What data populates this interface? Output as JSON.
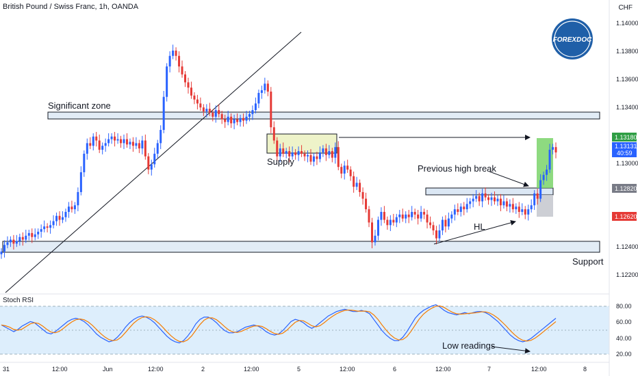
{
  "header": {
    "symbol_title": "British Pound / Swiss Franc, 1h, OANDA",
    "currency": "CHF",
    "logo_text": "FOREXDOC"
  },
  "chart_data": {
    "type": "candlestick",
    "title": "British Pound / Swiss Franc, 1h, OANDA",
    "y_axis": {
      "unit": "CHF",
      "range": [
        1.1208,
        1.142
      ],
      "ticks": [
        "1.14000",
        "1.13800",
        "1.13600",
        "1.13400",
        "1.13000",
        "1.12400",
        "1.12200"
      ]
    },
    "x_axis": {
      "ticks": [
        "31",
        "12:00",
        "Jun",
        "12:00",
        "2",
        "12:00",
        "5",
        "12:00",
        "6",
        "12:00",
        "7",
        "12:00",
        "8"
      ]
    },
    "price_labels": [
      {
        "text": "1.13180",
        "value": 1.1318,
        "color": "#2f9e44"
      },
      {
        "text": "1.13131",
        "value": 1.13131,
        "color": "#2962ff"
      },
      {
        "text": "40:59",
        "value": 1.13095,
        "color": "#2962ff"
      },
      {
        "text": "1.12820",
        "value": 1.1282,
        "color": "#787b86"
      },
      {
        "text": "1.12620",
        "value": 1.1262,
        "color": "#e53935"
      }
    ],
    "series_close": [
      1.1238,
      1.1243,
      1.1245,
      1.1247,
      1.1244,
      1.1246,
      1.1249,
      1.1247,
      1.125,
      1.1252,
      1.1249,
      1.1251,
      1.1253,
      1.1255,
      1.1257,
      1.1256,
      1.1258,
      1.1261,
      1.1265,
      1.1262,
      1.1264,
      1.1268,
      1.1272,
      1.127,
      1.1273,
      1.1283,
      1.1298,
      1.1312,
      1.132,
      1.1318,
      1.1325,
      1.1322,
      1.1315,
      1.1318,
      1.132,
      1.1323,
      1.1325,
      1.1322,
      1.1323,
      1.132,
      1.1323,
      1.1319,
      1.1321,
      1.1318,
      1.132,
      1.1316,
      1.1322,
      1.131,
      1.13,
      1.1304,
      1.1312,
      1.132,
      1.133,
      1.1355,
      1.1378,
      1.1386,
      1.139,
      1.1386,
      1.1378,
      1.1372,
      1.1366,
      1.1362,
      1.1356,
      1.1353,
      1.135,
      1.1347,
      1.1344,
      1.1346,
      1.1343,
      1.134,
      1.1345,
      1.1342,
      1.1338,
      1.1336,
      1.134,
      1.1335,
      1.1338,
      1.1336,
      1.1339,
      1.1337,
      1.134,
      1.1342,
      1.1345,
      1.135,
      1.1358,
      1.136,
      1.1365,
      1.1359,
      1.1332,
      1.1322,
      1.131,
      1.1316,
      1.1312,
      1.1314,
      1.131,
      1.1313,
      1.1311,
      1.1314,
      1.1312,
      1.131,
      1.1311,
      1.1306,
      1.131,
      1.1308,
      1.1313,
      1.1316,
      1.1311,
      1.1314,
      1.1309,
      1.1317,
      1.1302,
      1.1297,
      1.1303,
      1.13,
      1.1295,
      1.1287,
      1.129,
      1.1283,
      1.1278,
      1.127,
      1.126,
      1.1245,
      1.125,
      1.1262,
      1.1268,
      1.1262,
      1.1258,
      1.1262,
      1.126,
      1.1264,
      1.1266,
      1.1263,
      1.1266,
      1.1264,
      1.1268,
      1.1266,
      1.1263,
      1.1268,
      1.1266,
      1.126,
      1.1258,
      1.1254,
      1.1248,
      1.1254,
      1.1262,
      1.1257,
      1.1263,
      1.1266,
      1.127,
      1.1268,
      1.1272,
      1.127,
      1.1274,
      1.1276,
      1.1278,
      1.128,
      1.1276,
      1.1282,
      1.1279,
      1.1277,
      1.1279,
      1.1276,
      1.1278,
      1.1273,
      1.1276,
      1.1272,
      1.1274,
      1.127,
      1.1272,
      1.1268,
      1.127,
      1.1266,
      1.127,
      1.1273,
      1.1282,
      1.1278,
      1.1292,
      1.1296,
      1.13,
      1.1315,
      1.1317,
      1.1313
    ],
    "stoch_rsi": {
      "ticks": [
        "80.00",
        "60.00",
        "40.00",
        "20.00"
      ],
      "k": [
        52,
        48,
        44,
        40,
        44,
        50,
        54,
        58,
        56,
        50,
        44,
        38,
        36,
        40,
        46,
        52,
        58,
        62,
        64,
        62,
        58,
        52,
        44,
        36,
        30,
        26,
        22,
        24,
        30,
        38,
        48,
        56,
        62,
        66,
        68,
        66,
        62,
        56,
        48,
        40,
        32,
        26,
        22,
        20,
        24,
        32,
        42,
        54,
        62,
        66,
        66,
        62,
        56,
        48,
        42,
        38,
        38,
        40,
        44,
        48,
        50,
        52,
        50,
        46,
        40,
        36,
        34,
        36,
        42,
        50,
        58,
        62,
        60,
        56,
        50,
        46,
        50,
        56,
        62,
        68,
        72,
        76,
        78,
        80,
        78,
        76,
        76,
        78,
        76,
        72,
        62,
        52,
        42,
        34,
        28,
        24,
        24,
        30,
        40,
        52,
        64,
        72,
        78,
        82,
        86,
        88,
        84,
        78,
        74,
        72,
        70,
        72,
        74,
        72,
        74,
        76,
        76,
        74,
        70,
        64,
        58,
        50,
        42,
        34,
        28,
        24,
        22,
        24,
        28,
        34,
        40,
        46,
        52,
        58,
        64
      ]
    },
    "annotations": [
      {
        "text": "Significant zone"
      },
      {
        "text": "Supply"
      },
      {
        "text": "Previous high break"
      },
      {
        "text": "HL"
      },
      {
        "text": "Support"
      },
      {
        "text": "Low readings"
      }
    ]
  }
}
